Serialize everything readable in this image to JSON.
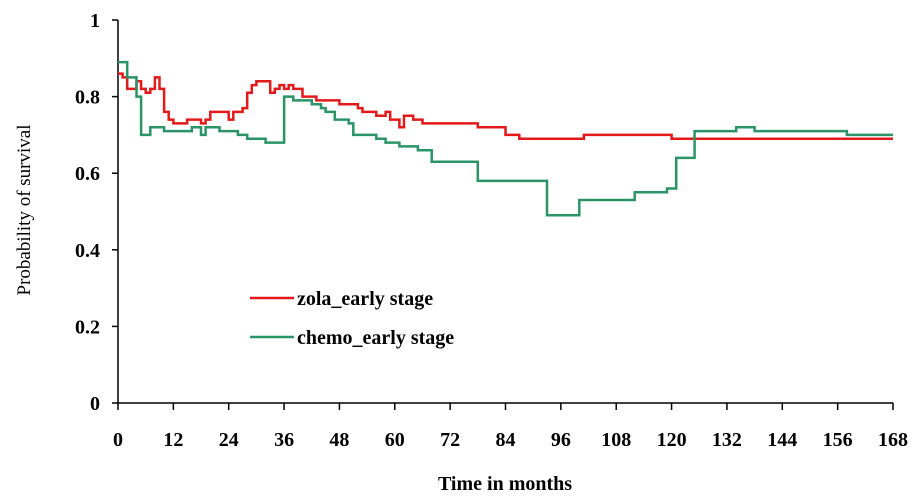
{
  "chart_data": {
    "type": "line",
    "title": "",
    "xlabel": "Time in months",
    "ylabel": "Probability of survival",
    "xlim": [
      0,
      168
    ],
    "ylim": [
      0,
      1
    ],
    "x_ticks": [
      0,
      12,
      24,
      36,
      48,
      60,
      72,
      84,
      96,
      108,
      120,
      132,
      144,
      156,
      168
    ],
    "y_ticks": [
      0,
      0.2,
      0.4,
      0.6,
      0.8,
      1
    ],
    "y_tick_labels": [
      "0",
      "0.2",
      "0.4",
      "0.6",
      "0.8",
      "1"
    ],
    "grid": false,
    "legend_position": "center-left",
    "series": [
      {
        "name": "zola_early stage",
        "color": "#e31a1c",
        "step": true,
        "points": [
          [
            0,
            0.86
          ],
          [
            1,
            0.85
          ],
          [
            2,
            0.82
          ],
          [
            4,
            0.84
          ],
          [
            5,
            0.82
          ],
          [
            6,
            0.81
          ],
          [
            7,
            0.82
          ],
          [
            8,
            0.85
          ],
          [
            9,
            0.82
          ],
          [
            10,
            0.76
          ],
          [
            11,
            0.74
          ],
          [
            12,
            0.73
          ],
          [
            14,
            0.73
          ],
          [
            15,
            0.74
          ],
          [
            17,
            0.74
          ],
          [
            18,
            0.73
          ],
          [
            19,
            0.74
          ],
          [
            20,
            0.76
          ],
          [
            22,
            0.76
          ],
          [
            24,
            0.74
          ],
          [
            25,
            0.76
          ],
          [
            27,
            0.77
          ],
          [
            28,
            0.81
          ],
          [
            29,
            0.83
          ],
          [
            30,
            0.84
          ],
          [
            32,
            0.84
          ],
          [
            33,
            0.81
          ],
          [
            34,
            0.82
          ],
          [
            35,
            0.83
          ],
          [
            36,
            0.82
          ],
          [
            37,
            0.83
          ],
          [
            38,
            0.82
          ],
          [
            40,
            0.8
          ],
          [
            43,
            0.79
          ],
          [
            48,
            0.78
          ],
          [
            52,
            0.77
          ],
          [
            53,
            0.76
          ],
          [
            56,
            0.75
          ],
          [
            58,
            0.76
          ],
          [
            59,
            0.74
          ],
          [
            61,
            0.72
          ],
          [
            62,
            0.75
          ],
          [
            63,
            0.75
          ],
          [
            64,
            0.74
          ],
          [
            66,
            0.73
          ],
          [
            78,
            0.72
          ],
          [
            84,
            0.7
          ],
          [
            87,
            0.69
          ],
          [
            101,
            0.7
          ],
          [
            120,
            0.69
          ],
          [
            168,
            0.69
          ]
        ]
      },
      {
        "name": "chemo_early stage",
        "color": "#2a9468",
        "step": true,
        "points": [
          [
            0,
            0.89
          ],
          [
            2,
            0.85
          ],
          [
            4,
            0.8
          ],
          [
            5,
            0.7
          ],
          [
            7,
            0.72
          ],
          [
            10,
            0.71
          ],
          [
            14,
            0.71
          ],
          [
            16,
            0.72
          ],
          [
            18,
            0.7
          ],
          [
            19,
            0.72
          ],
          [
            22,
            0.71
          ],
          [
            26,
            0.7
          ],
          [
            28,
            0.69
          ],
          [
            32,
            0.68
          ],
          [
            36,
            0.8
          ],
          [
            38,
            0.79
          ],
          [
            42,
            0.78
          ],
          [
            44,
            0.77
          ],
          [
            45,
            0.76
          ],
          [
            47,
            0.74
          ],
          [
            50,
            0.73
          ],
          [
            51,
            0.7
          ],
          [
            56,
            0.69
          ],
          [
            58,
            0.68
          ],
          [
            61,
            0.67
          ],
          [
            65,
            0.66
          ],
          [
            68,
            0.63
          ],
          [
            72,
            0.63
          ],
          [
            78,
            0.58
          ],
          [
            84,
            0.58
          ],
          [
            93,
            0.49
          ],
          [
            100,
            0.53
          ],
          [
            107,
            0.53
          ],
          [
            112,
            0.55
          ],
          [
            119,
            0.56
          ],
          [
            121,
            0.64
          ],
          [
            125,
            0.71
          ],
          [
            130,
            0.71
          ],
          [
            134,
            0.72
          ],
          [
            138,
            0.71
          ],
          [
            150,
            0.71
          ],
          [
            158,
            0.7
          ],
          [
            168,
            0.7
          ]
        ]
      }
    ]
  }
}
